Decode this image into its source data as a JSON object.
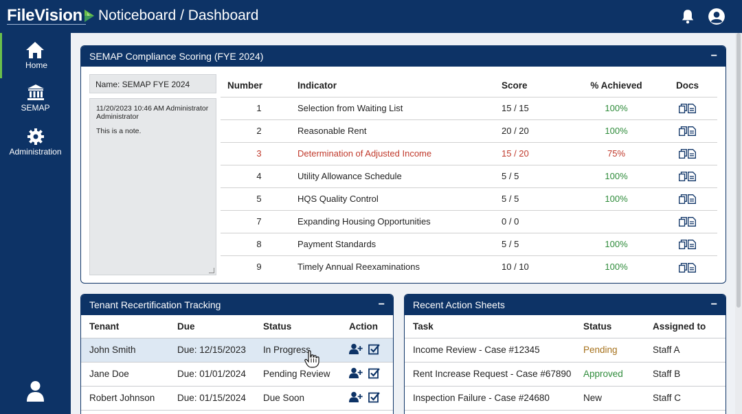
{
  "app": {
    "logo_text": "FileVision",
    "page_title": "Noticeboard / Dashboard"
  },
  "sidebar": {
    "items": [
      {
        "label": "Home",
        "icon": "home-icon",
        "active": true
      },
      {
        "label": "SEMAP",
        "icon": "bank-icon",
        "active": false
      },
      {
        "label": "Administration",
        "icon": "gear-icon",
        "active": false
      }
    ],
    "bottom_icon": "user-icon"
  },
  "topbar": {
    "icons": [
      "bell-icon",
      "account-icon"
    ]
  },
  "semap": {
    "title": "SEMAP Compliance Scoring (FYE 2024)",
    "collapse": "−",
    "note_name": "Name:  SEMAP FYE 2024",
    "note_header": "11/20/2023 10:46 AM Administrator Administrator",
    "note_body": "This is a note.",
    "columns": [
      "Number",
      "Indicator",
      "Score",
      "% Achieved",
      "Docs"
    ],
    "rows": [
      {
        "number": "1",
        "indicator": "Selection from Waiting List",
        "score": "15 / 15",
        "pct": "100%"
      },
      {
        "number": "2",
        "indicator": "Reasonable Rent",
        "score": "20 / 20",
        "pct": "100%"
      },
      {
        "number": "3",
        "indicator": "Determination of Adjusted Income",
        "score": "15 / 20",
        "pct": "75%"
      },
      {
        "number": "4",
        "indicator": "Utility Allowance Schedule",
        "score": "5 / 5",
        "pct": "100%"
      },
      {
        "number": "5",
        "indicator": "HQS Quality Control",
        "score": "5 / 5",
        "pct": "100%"
      },
      {
        "number": "7",
        "indicator": "Expanding Housing Opportunities",
        "score": "0 / 0",
        "pct": ""
      },
      {
        "number": "8",
        "indicator": "Payment Standards",
        "score": "5 / 5",
        "pct": "100%"
      },
      {
        "number": "9",
        "indicator": "Timely Annual Reexaminations",
        "score": "10 / 10",
        "pct": "100%"
      }
    ]
  },
  "recert": {
    "title": "Tenant Recertification Tracking",
    "collapse": "−",
    "columns": [
      "Tenant",
      "Due",
      "Status",
      "Action"
    ],
    "rows": [
      {
        "tenant": "John Smith",
        "due": "Due: 12/15/2023",
        "status": "In Progress"
      },
      {
        "tenant": "Jane Doe",
        "due": "Due: 01/01/2024",
        "status": "Pending Review"
      },
      {
        "tenant": "Robert Johnson",
        "due": "Due: 01/15/2024",
        "status": "Due Soon"
      }
    ]
  },
  "actions": {
    "title": "Recent Action Sheets",
    "collapse": "−",
    "columns": [
      "Task",
      "Status",
      "Assigned to"
    ],
    "rows": [
      {
        "task": "Income Review - Case #12345",
        "status": "Pending",
        "assigned": "Staff A"
      },
      {
        "task": "Rent Increase Request - Case #67890",
        "status": "Approved",
        "assigned": "Staff B"
      },
      {
        "task": "Inspection Failure - Case #24680",
        "status": "New",
        "assigned": "Staff C"
      }
    ]
  },
  "colors": {
    "navy": "#0d3366",
    "success": "#2e8b3a",
    "warning": "#c0392b",
    "pending": "#a5701a",
    "accent": "#6abf4b"
  }
}
